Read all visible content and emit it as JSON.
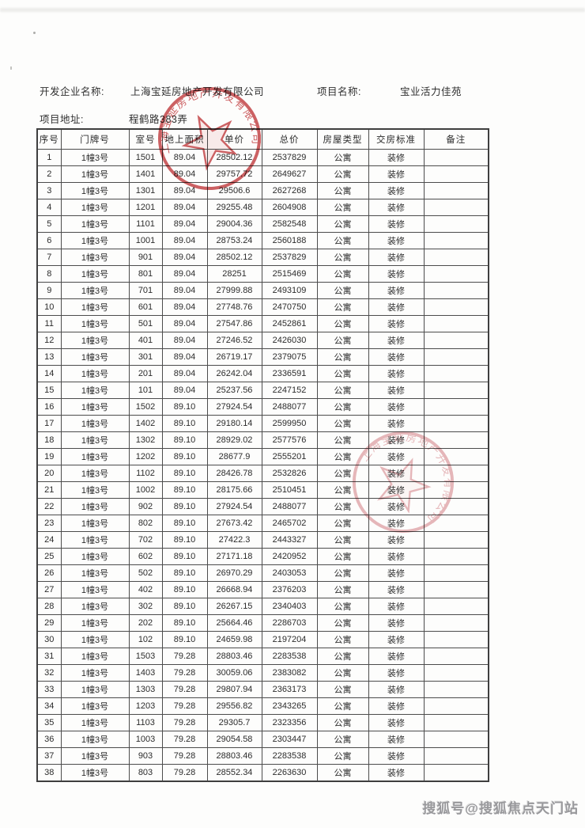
{
  "header": {
    "developer_label": "开发企业名称:",
    "developer_name": "上海宝延房地产开发有限公司",
    "project_label": "项目名称:",
    "project_name": "宝业活力佳苑",
    "address_label": "项目地址:",
    "address_value": "程鹤路383弄"
  },
  "table": {
    "columns": [
      "序号",
      "门牌号",
      "室号",
      "地上面积",
      "单价",
      "总价",
      "房屋类型",
      "交房标准",
      "备注"
    ],
    "rows": [
      [
        "1",
        "1幢3号",
        "1501",
        "89.04",
        "28502.12",
        "2537829",
        "公寓",
        "装修",
        ""
      ],
      [
        "2",
        "1幢3号",
        "1401",
        "89.04",
        "29757.72",
        "2649627",
        "公寓",
        "装修",
        ""
      ],
      [
        "3",
        "1幢3号",
        "1301",
        "89.04",
        "29506.6",
        "2627268",
        "公寓",
        "装修",
        ""
      ],
      [
        "4",
        "1幢3号",
        "1201",
        "89.04",
        "29255.48",
        "2604908",
        "公寓",
        "装修",
        ""
      ],
      [
        "5",
        "1幢3号",
        "1101",
        "89.04",
        "29004.36",
        "2582548",
        "公寓",
        "装修",
        ""
      ],
      [
        "6",
        "1幢3号",
        "1001",
        "89.04",
        "28753.24",
        "2560188",
        "公寓",
        "装修",
        ""
      ],
      [
        "7",
        "1幢3号",
        "901",
        "89.04",
        "28502.12",
        "2537829",
        "公寓",
        "装修",
        ""
      ],
      [
        "8",
        "1幢3号",
        "801",
        "89.04",
        "28251",
        "2515469",
        "公寓",
        "装修",
        ""
      ],
      [
        "9",
        "1幢3号",
        "701",
        "89.04",
        "27999.88",
        "2493109",
        "公寓",
        "装修",
        ""
      ],
      [
        "10",
        "1幢3号",
        "601",
        "89.04",
        "27748.76",
        "2470750",
        "公寓",
        "装修",
        ""
      ],
      [
        "11",
        "1幢3号",
        "501",
        "89.04",
        "27547.86",
        "2452861",
        "公寓",
        "装修",
        ""
      ],
      [
        "12",
        "1幢3号",
        "401",
        "89.04",
        "27246.52",
        "2426030",
        "公寓",
        "装修",
        ""
      ],
      [
        "13",
        "1幢3号",
        "301",
        "89.04",
        "26719.17",
        "2379075",
        "公寓",
        "装修",
        ""
      ],
      [
        "14",
        "1幢3号",
        "201",
        "89.04",
        "26242.04",
        "2336591",
        "公寓",
        "装修",
        ""
      ],
      [
        "15",
        "1幢3号",
        "101",
        "89.04",
        "25237.56",
        "2247152",
        "公寓",
        "装修",
        ""
      ],
      [
        "16",
        "1幢3号",
        "1502",
        "89.10",
        "27924.54",
        "2488077",
        "公寓",
        "装修",
        ""
      ],
      [
        "17",
        "1幢3号",
        "1402",
        "89.10",
        "29180.14",
        "2599950",
        "公寓",
        "装修",
        ""
      ],
      [
        "18",
        "1幢3号",
        "1302",
        "89.10",
        "28929.02",
        "2577576",
        "公寓",
        "装修",
        ""
      ],
      [
        "19",
        "1幢3号",
        "1202",
        "89.10",
        "28677.9",
        "2555201",
        "公寓",
        "装修",
        ""
      ],
      [
        "20",
        "1幢3号",
        "1102",
        "89.10",
        "28426.78",
        "2532826",
        "公寓",
        "装修",
        ""
      ],
      [
        "21",
        "1幢3号",
        "1002",
        "89.10",
        "28175.66",
        "2510451",
        "公寓",
        "装修",
        ""
      ],
      [
        "22",
        "1幢3号",
        "902",
        "89.10",
        "27924.54",
        "2488077",
        "公寓",
        "装修",
        ""
      ],
      [
        "23",
        "1幢3号",
        "802",
        "89.10",
        "27673.42",
        "2465702",
        "公寓",
        "装修",
        ""
      ],
      [
        "24",
        "1幢3号",
        "702",
        "89.10",
        "27422.3",
        "2443327",
        "公寓",
        "装修",
        ""
      ],
      [
        "25",
        "1幢3号",
        "602",
        "89.10",
        "27171.18",
        "2420952",
        "公寓",
        "装修",
        ""
      ],
      [
        "26",
        "1幢3号",
        "502",
        "89.10",
        "26970.29",
        "2403053",
        "公寓",
        "装修",
        ""
      ],
      [
        "27",
        "1幢3号",
        "402",
        "89.10",
        "26668.94",
        "2376203",
        "公寓",
        "装修",
        ""
      ],
      [
        "28",
        "1幢3号",
        "302",
        "89.10",
        "26267.15",
        "2340403",
        "公寓",
        "装修",
        ""
      ],
      [
        "29",
        "1幢3号",
        "202",
        "89.10",
        "25664.46",
        "2286703",
        "公寓",
        "装修",
        ""
      ],
      [
        "30",
        "1幢3号",
        "102",
        "89.10",
        "24659.98",
        "2197204",
        "公寓",
        "装修",
        ""
      ],
      [
        "31",
        "1幢3号",
        "1503",
        "79.28",
        "28803.46",
        "2283538",
        "公寓",
        "装修",
        ""
      ],
      [
        "32",
        "1幢3号",
        "1403",
        "79.28",
        "30059.06",
        "2383082",
        "公寓",
        "装修",
        ""
      ],
      [
        "33",
        "1幢3号",
        "1303",
        "79.28",
        "29807.94",
        "2363173",
        "公寓",
        "装修",
        ""
      ],
      [
        "34",
        "1幢3号",
        "1203",
        "79.28",
        "29556.82",
        "2343265",
        "公寓",
        "装修",
        ""
      ],
      [
        "35",
        "1幢3号",
        "1103",
        "79.28",
        "29305.7",
        "2323356",
        "公寓",
        "装修",
        ""
      ],
      [
        "36",
        "1幢3号",
        "1003",
        "79.28",
        "29054.58",
        "2303447",
        "公寓",
        "装修",
        ""
      ],
      [
        "37",
        "1幢3号",
        "903",
        "79.28",
        "28803.46",
        "2283538",
        "公寓",
        "装修",
        ""
      ],
      [
        "38",
        "1幢3号",
        "803",
        "79.28",
        "28552.34",
        "2263630",
        "公寓",
        "装修",
        ""
      ]
    ]
  },
  "seal": {
    "company": "上海宝延房地产开发有限公司",
    "color": "#c23a3d"
  },
  "watermark": {
    "text": "搜狐号@搜狐焦点天门站"
  }
}
